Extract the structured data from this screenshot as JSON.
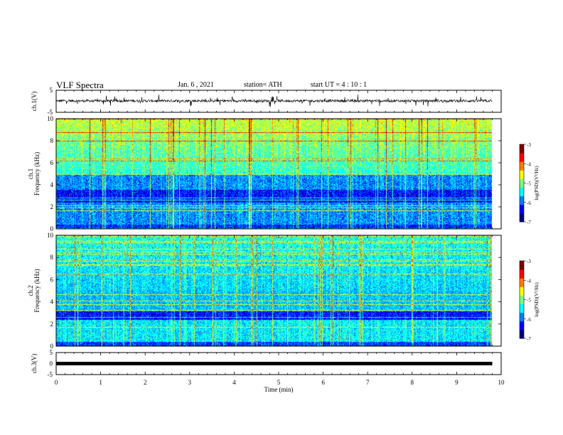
{
  "header": {
    "title": "VLF Spectra",
    "date": "Jan. 6 , 2021",
    "station": "station= ATH",
    "start": "start UT = 4 : 10 : 1"
  },
  "chart_data": [
    {
      "type": "line",
      "panel": "ch.1 time series",
      "ylabel": "ch.1(V)",
      "ylim": [
        -5,
        5
      ],
      "yticks": [
        -5,
        5
      ],
      "xlim": [
        0,
        10
      ],
      "description_values": {
        "baseline_volts": 0.2,
        "spike_range_volts": [
          -3,
          3
        ]
      }
    },
    {
      "type": "heatmap",
      "panel": "ch.1 spectrogram",
      "ylabel": "ch.1 Frequency (kHz)",
      "ylim": [
        0,
        10
      ],
      "yticks": [
        0,
        2,
        4,
        6,
        8,
        10
      ],
      "xlim": [
        0,
        9.8
      ],
      "colorbar": {
        "label": "log(PSD)(V²/Hz)",
        "range": [
          -7,
          -3
        ],
        "ticks": [
          -7,
          -6,
          -5,
          -4,
          -3
        ]
      },
      "data_end_min": 9.8
    },
    {
      "type": "heatmap",
      "panel": "ch.2 spectrogram",
      "ylabel": "ch.2 Frequency (kHz)",
      "ylim": [
        0,
        10
      ],
      "yticks": [
        0,
        2,
        4,
        6,
        8,
        10
      ],
      "xlim": [
        0,
        9.8
      ],
      "colorbar": {
        "label": "log(PSD)(V²/Hz)",
        "range": [
          -7,
          -3
        ],
        "ticks": [
          -7,
          -6,
          -5,
          -4,
          -3
        ]
      },
      "data_end_min": 9.8
    },
    {
      "type": "line",
      "panel": "ch.3 time series",
      "ylabel": "ch.3(V)",
      "ylim": [
        -5,
        5
      ],
      "yticks": [
        -5,
        0,
        5
      ],
      "xlim": [
        0,
        10
      ],
      "flat_value_volts": 0.0
    }
  ],
  "xaxis": {
    "label": "Time (min)",
    "ticks": [
      0,
      1,
      2,
      3,
      4,
      5,
      6,
      7,
      8,
      9,
      10
    ]
  },
  "colormap": [
    "#00007f",
    "#0000ff",
    "#007fff",
    "#00ffff",
    "#7fff7f",
    "#ffff00",
    "#ff7f00",
    "#ff0000",
    "#7f0000"
  ]
}
